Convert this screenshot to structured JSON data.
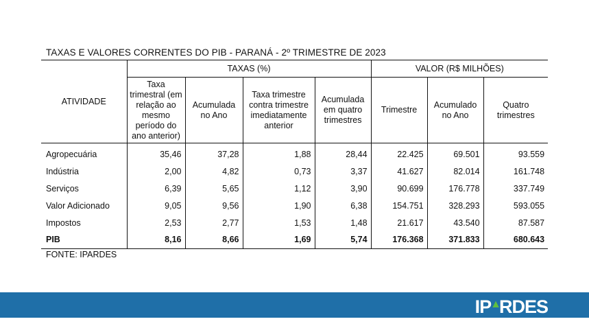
{
  "title": "TAXAS E VALORES CORRENTES DO PIB - PARANÁ - 2º TRIMESTRE DE 2023",
  "headers": {
    "atividade": "ATIVIDADE",
    "taxas_group": "TAXAS (%)",
    "valor_group": "VALOR (R$ MILHÕES)",
    "cols": [
      "Taxa trimestral (em relação ao mesmo período do ano anterior)",
      "Acumulada no Ano",
      "Taxa trimestre contra trimestre imediatamente anterior",
      "Acumulada em quatro trimestres",
      "Trimestre",
      "Acumulado no Ano",
      "Quatro trimestres"
    ]
  },
  "rows": [
    {
      "label": "Agropecuária",
      "values": [
        "35,46",
        "37,28",
        "1,88",
        "28,44",
        "22.425",
        "69.501",
        "93.559"
      ]
    },
    {
      "label": "Indústria",
      "values": [
        "2,00",
        "4,82",
        "0,73",
        "3,37",
        "41.627",
        "82.014",
        "161.748"
      ]
    },
    {
      "label": "Serviços",
      "values": [
        "6,39",
        "5,65",
        "1,12",
        "3,90",
        "90.699",
        "176.778",
        "337.749"
      ]
    },
    {
      "label": "Valor Adicionado",
      "values": [
        "9,05",
        "9,56",
        "1,90",
        "6,38",
        "154.751",
        "328.293",
        "593.055"
      ]
    },
    {
      "label": "Impostos",
      "values": [
        "2,53",
        "2,77",
        "1,53",
        "1,48",
        "21.617",
        "43.540",
        "87.587"
      ]
    },
    {
      "label": "PIB",
      "values": [
        "8,16",
        "8,66",
        "1,69",
        "5,74",
        "176.368",
        "371.833",
        "680.643"
      ]
    }
  ],
  "source": "FONTE: IPARDES",
  "footer": {
    "logo_left": "IP",
    "logo_right": "RDES",
    "brand_color": "#1f6fa8",
    "accent_color": "#5fbf3f"
  }
}
